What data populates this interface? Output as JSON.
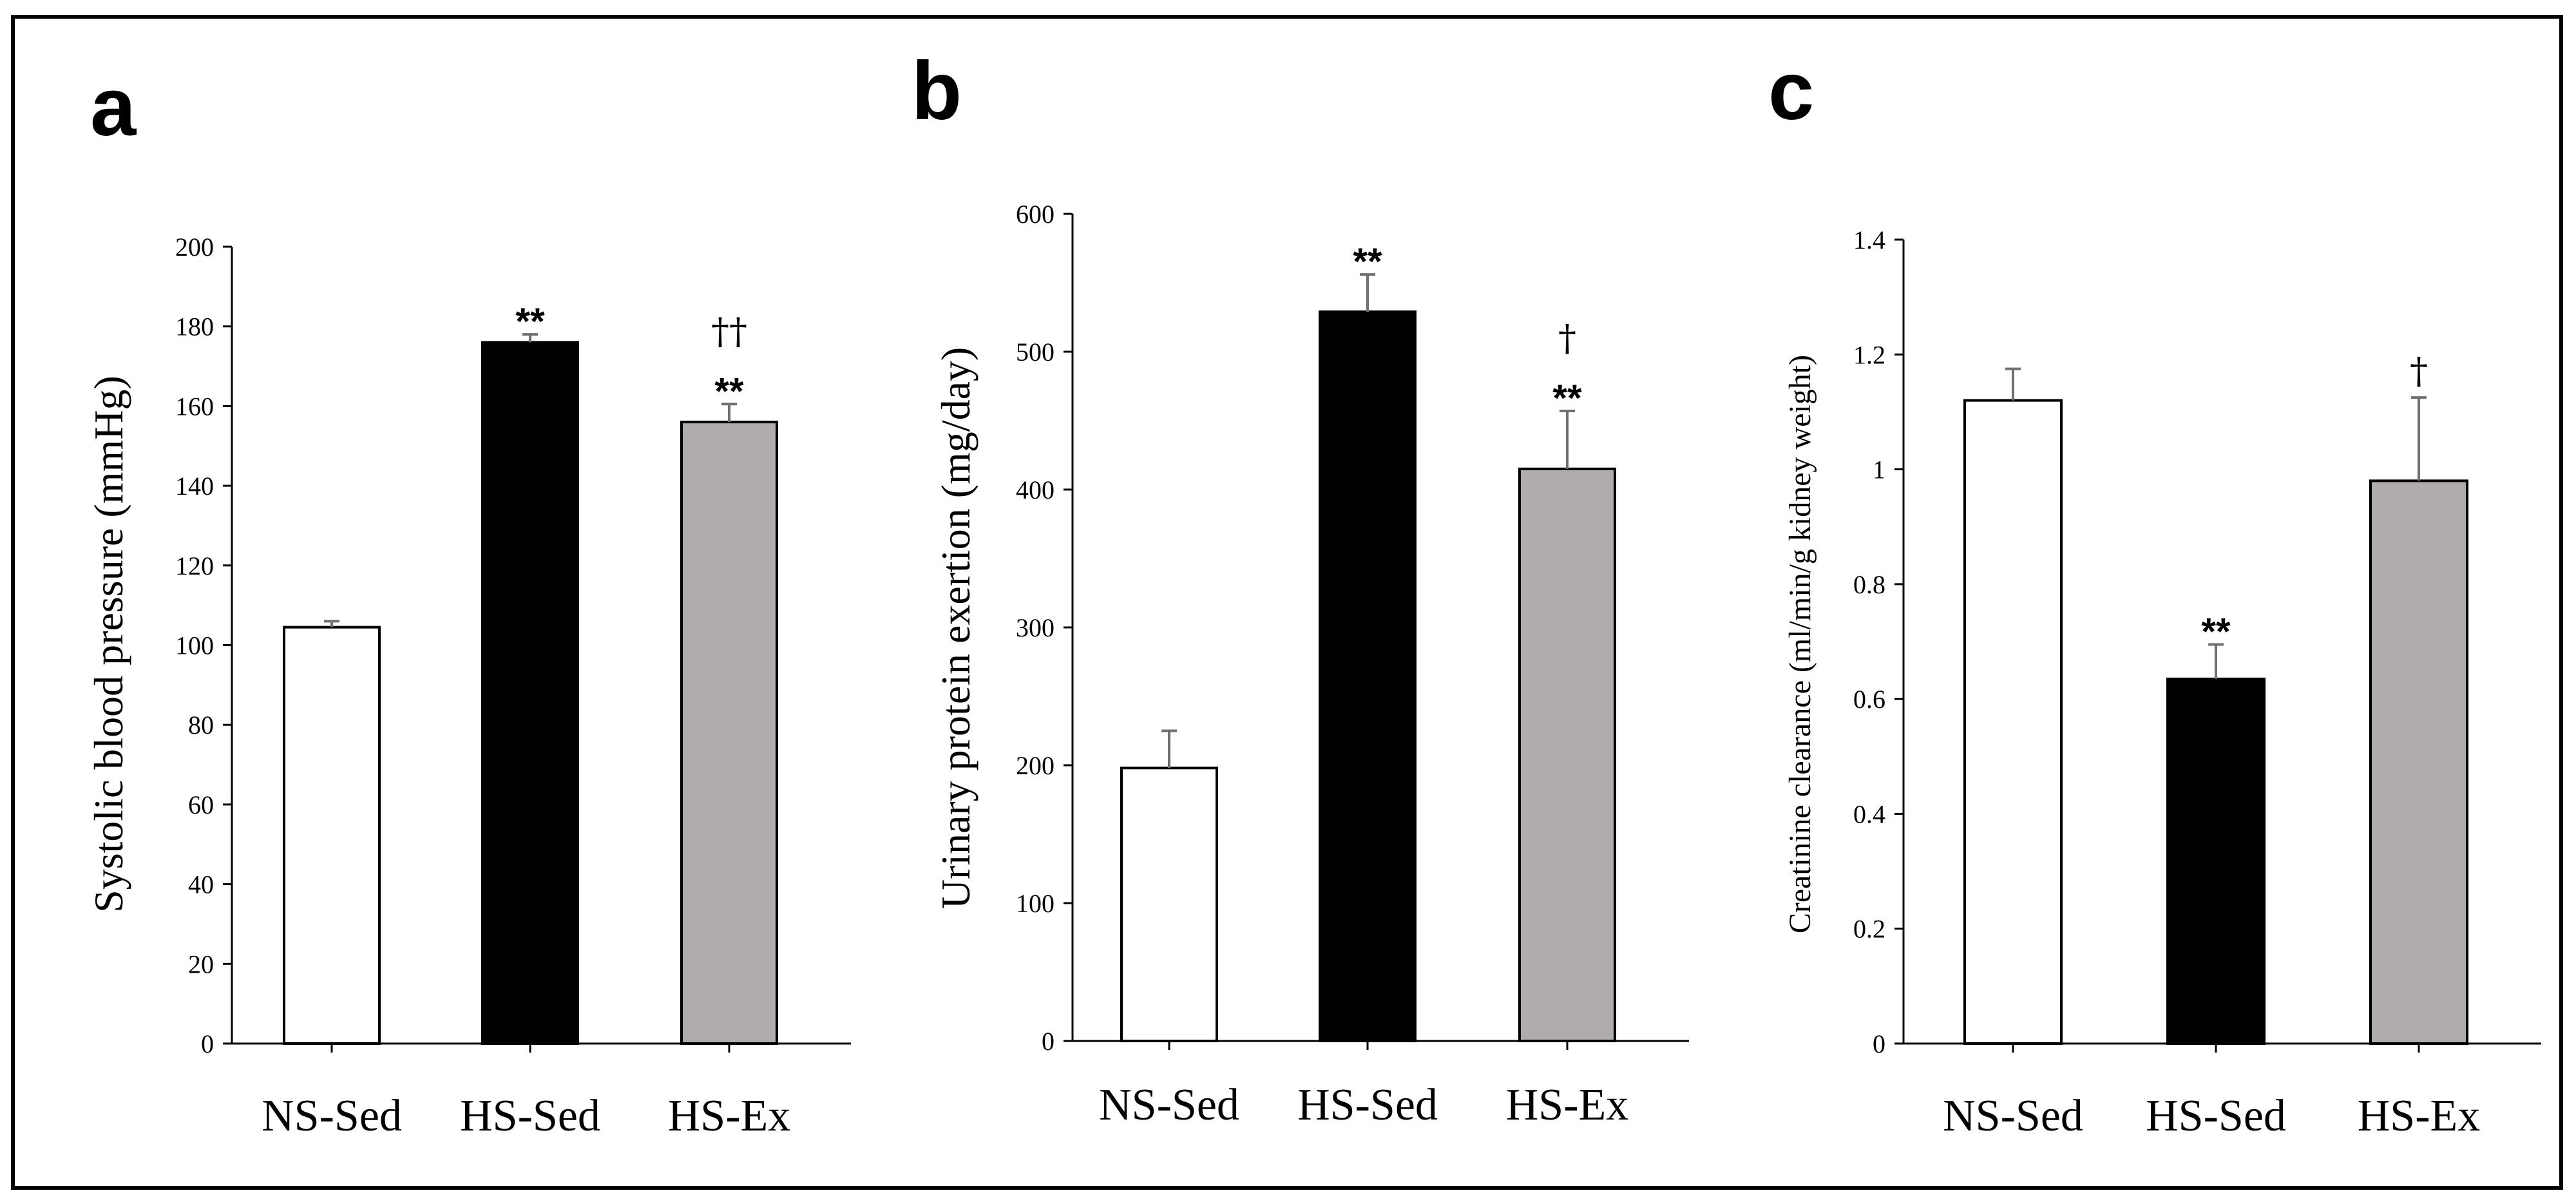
{
  "chart_data": [
    {
      "type": "bar",
      "panel": "a",
      "categories": [
        "NS-Sed",
        "HS-Sed",
        "HS-Ex"
      ],
      "values": [
        104.5,
        176,
        156
      ],
      "errors": [
        1.5,
        2,
        4.5
      ],
      "colors": [
        "#ffffff",
        "#000000",
        "#b0acac"
      ],
      "significance": [
        [],
        [
          "**"
        ],
        [
          "††",
          "**"
        ]
      ],
      "ylabel": "Systolic blood pressure (mmHg)",
      "ylim": [
        0,
        200
      ],
      "yticks": [
        0,
        20,
        40,
        60,
        80,
        100,
        120,
        140,
        160,
        180,
        200
      ]
    },
    {
      "type": "bar",
      "panel": "b",
      "categories": [
        "NS-Sed",
        "HS-Sed",
        "HS-Ex"
      ],
      "values": [
        198,
        529,
        415
      ],
      "errors": [
        27,
        27,
        42
      ],
      "colors": [
        "#ffffff",
        "#000000",
        "#b0acac"
      ],
      "significance": [
        [],
        [
          "**"
        ],
        [
          "†",
          "**"
        ]
      ],
      "ylabel": "Urinary protein exertion (mg/day)",
      "ylim": [
        0,
        600
      ],
      "yticks": [
        0,
        100,
        200,
        300,
        400,
        500,
        600
      ]
    },
    {
      "type": "bar",
      "panel": "c",
      "categories": [
        "NS-Sed",
        "HS-Sed",
        "HS-Ex"
      ],
      "values": [
        1.12,
        0.635,
        0.98
      ],
      "errors": [
        0.055,
        0.06,
        0.145
      ],
      "colors": [
        "#ffffff",
        "#000000",
        "#b0acac"
      ],
      "significance": [
        [],
        [
          "**"
        ],
        [
          "†"
        ]
      ],
      "ylabel": "Creatinine clearance (ml/min/g kidney weight)",
      "ylim": [
        0,
        1.4
      ],
      "yticks": [
        0,
        0.2,
        0.4,
        0.6,
        0.8,
        1,
        1.2,
        1.4
      ]
    }
  ]
}
